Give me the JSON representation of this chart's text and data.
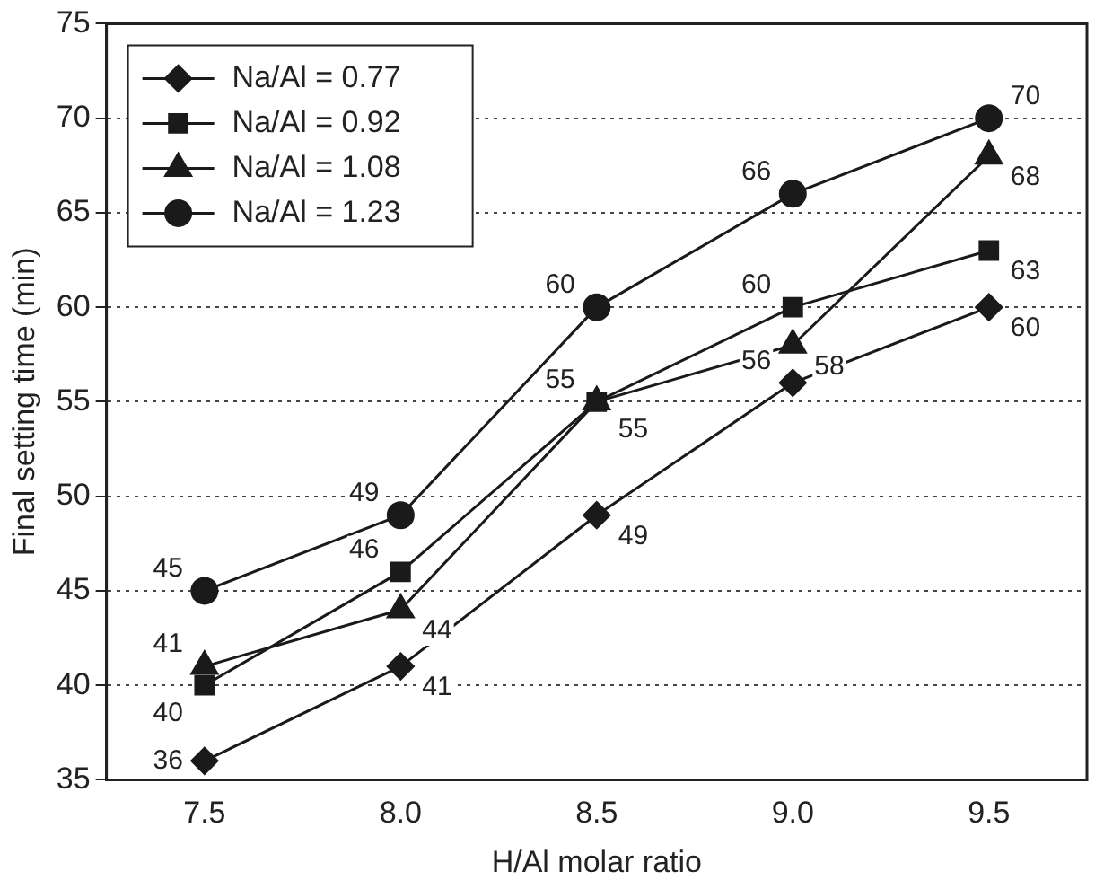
{
  "chart_data": {
    "type": "line",
    "xlabel": "H/Al molar ratio",
    "ylabel": "Final setting time (min)",
    "categories": [
      "7.5",
      "8.0",
      "8.5",
      "9.0",
      "9.5"
    ],
    "ylim": [
      35,
      75
    ],
    "yticks": [
      35,
      40,
      45,
      50,
      55,
      60,
      65,
      70,
      75
    ],
    "grid": "y",
    "legend": "top left",
    "data_labels": true,
    "line_style": "solid",
    "series": [
      {
        "name": "Na/Al = 0.77",
        "color": "#1a1a1a",
        "marker": "diamond",
        "values": [
          36,
          41,
          49,
          56,
          60
        ]
      },
      {
        "name": "Na/Al = 0.92",
        "color": "#1a1a1a",
        "marker": "square",
        "values": [
          40,
          46,
          55,
          60,
          63
        ]
      },
      {
        "name": "Na/Al = 1.08",
        "color": "#1a1a1a",
        "marker": "triangle",
        "values": [
          41,
          44,
          55,
          58,
          68
        ]
      },
      {
        "name": "Na/Al = 1.23",
        "color": "#1a1a1a",
        "marker": "circle",
        "values": [
          45,
          49,
          60,
          66,
          70
        ]
      }
    ]
  }
}
